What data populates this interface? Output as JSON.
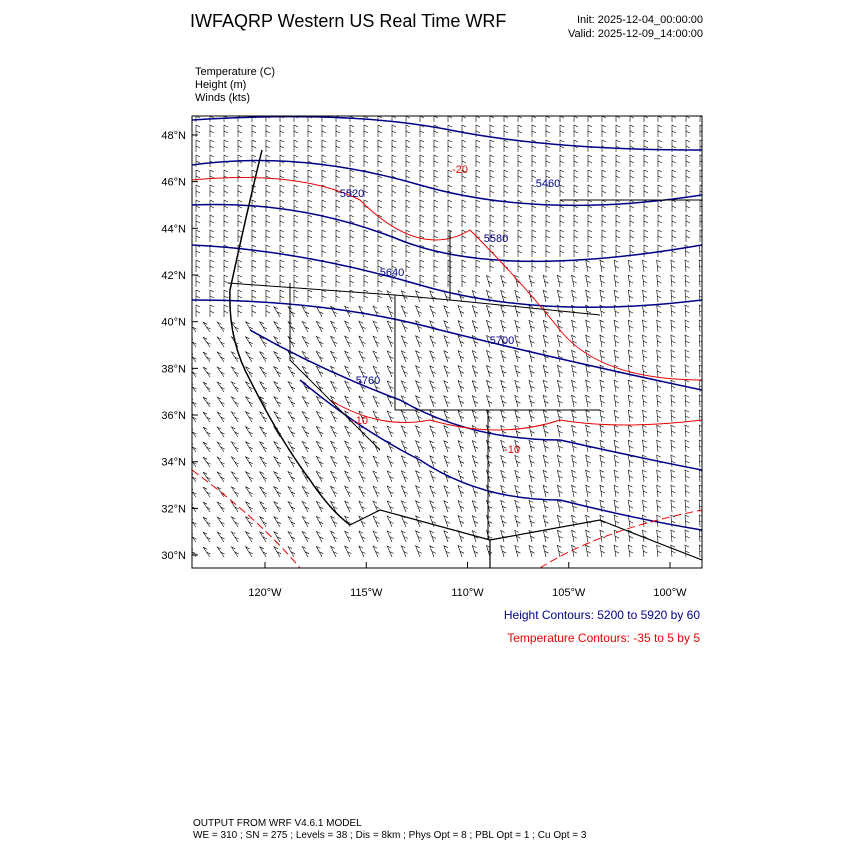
{
  "header": {
    "title": "IWFAQRP Western US Real Time WRF",
    "init": "Init: 2025-12-04_00:00:00",
    "valid": "Valid: 2025-12-09_14:00:00"
  },
  "fields": [
    "Temperature   (C)",
    "Height   (m)",
    "Winds   (kts)"
  ],
  "map": {
    "lat_labels": [
      "48°N",
      "46°N",
      "44°N",
      "42°N",
      "40°N",
      "38°N",
      "36°N",
      "34°N",
      "32°N",
      "30°N"
    ],
    "lon_labels": [
      "120°W",
      "115°W",
      "110°W",
      "105°W",
      "100°W"
    ],
    "height_labels": [
      "5460",
      "5520",
      "5580",
      "5640",
      "5700",
      "5760"
    ],
    "temperature_labels": [
      "-20",
      "-10",
      "-10"
    ]
  },
  "legend": {
    "height": "Height Contours: 5200 to 5920 by 60",
    "temperature": "Temperature Contours: -35 to 5 by 5"
  },
  "footer": {
    "model": "OUTPUT FROM WRF V4.6.1 MODEL",
    "config": "WE = 310 ; SN = 275 ; Levels = 38 ; Dis = 8km ; Phys Opt = 8 ; PBL Opt = 1 ; Cu Opt = 3"
  }
}
